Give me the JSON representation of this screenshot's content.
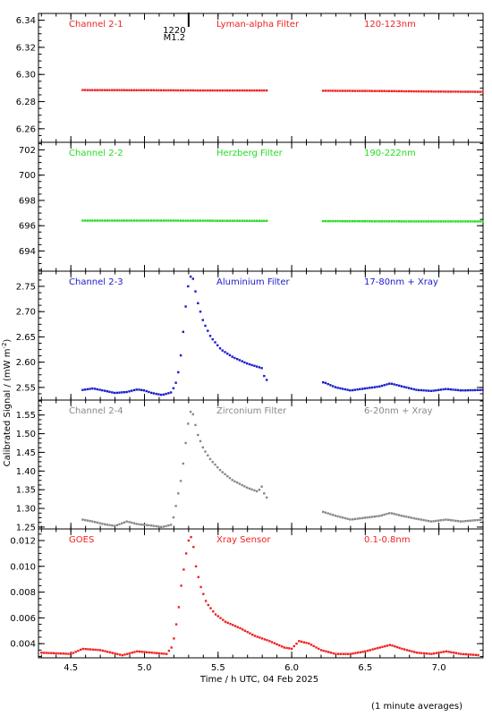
{
  "figure": {
    "ylabel": "Calibrated Signal / (mW m",
    "ylabel_sup": "-2",
    "ylabel_close": ")",
    "xlabel": "Time / h UTC, 04 Feb 2025",
    "footnote": "(1 minute averages)",
    "marker": {
      "top": "1220",
      "bottom": "M1.2",
      "time": 5.3
    }
  },
  "chart_data": [
    {
      "type": "scatter",
      "channel": "Channel 2-1",
      "filter": "Lyman-alpha Filter",
      "band": "120-123nm",
      "color": "#ee2222",
      "ylim": [
        6.25,
        6.345
      ],
      "yticks": [
        6.26,
        6.28,
        6.3,
        6.32,
        6.34
      ],
      "ydec": 2,
      "ytick_labels": true,
      "series": [
        {
          "pts": [
            [
              4.58,
              6.2885
            ],
            [
              5.0,
              6.2884
            ],
            [
              5.4,
              6.2882
            ],
            [
              5.82,
              6.2882
            ],
            [
              6.22,
              6.288
            ],
            [
              6.6,
              6.2878
            ],
            [
              7.0,
              6.2874
            ],
            [
              7.3,
              6.2872
            ]
          ]
        }
      ],
      "gaps": [
        [
          5.83,
          6.21
        ]
      ]
    },
    {
      "type": "scatter",
      "channel": "Channel 2-2",
      "filter": "Herzberg Filter",
      "band": "190-222nm",
      "color": "#22dd22",
      "ylim": [
        692.4,
        702.6
      ],
      "yticks": [
        694,
        696,
        698,
        700,
        702
      ],
      "ydec": 0,
      "ytick_labels": true,
      "series": [
        {
          "pts": [
            [
              4.58,
              696.4
            ],
            [
              5.2,
              696.4
            ],
            [
              5.82,
              696.38
            ],
            [
              6.22,
              696.36
            ],
            [
              6.8,
              696.34
            ],
            [
              7.3,
              696.34
            ]
          ]
        }
      ],
      "gaps": [
        [
          5.83,
          6.21
        ]
      ]
    },
    {
      "type": "scatter",
      "channel": "Channel 2-3",
      "filter": "Aluminium Filter",
      "band": "17-80nm + Xray",
      "color": "#1a1acc",
      "ylim": [
        2.525,
        2.78
      ],
      "yticks": [
        2.55,
        2.6,
        2.65,
        2.7,
        2.75
      ],
      "ydec": 2,
      "ytick_labels": true,
      "series": [
        {
          "pts": [
            [
              4.58,
              2.545
            ],
            [
              4.65,
              2.548
            ],
            [
              4.72,
              2.544
            ],
            [
              4.8,
              2.539
            ],
            [
              4.88,
              2.541
            ],
            [
              4.95,
              2.546
            ],
            [
              5.0,
              2.544
            ],
            [
              5.05,
              2.539
            ],
            [
              5.12,
              2.535
            ],
            [
              5.18,
              2.54
            ],
            [
              5.21,
              2.555
            ],
            [
              5.23,
              2.58
            ],
            [
              5.25,
              2.62
            ],
            [
              5.27,
              2.68
            ],
            [
              5.29,
              2.74
            ],
            [
              5.31,
              2.77
            ],
            [
              5.33,
              2.765
            ],
            [
              5.36,
              2.72
            ],
            [
              5.4,
              2.68
            ],
            [
              5.45,
              2.65
            ],
            [
              5.52,
              2.625
            ],
            [
              5.6,
              2.61
            ],
            [
              5.7,
              2.597
            ],
            [
              5.8,
              2.588
            ],
            [
              5.82,
              2.565
            ],
            [
              6.22,
              2.56
            ],
            [
              6.3,
              2.55
            ],
            [
              6.4,
              2.544
            ],
            [
              6.5,
              2.548
            ],
            [
              6.6,
              2.552
            ],
            [
              6.67,
              2.558
            ],
            [
              6.75,
              2.552
            ],
            [
              6.85,
              2.545
            ],
            [
              6.95,
              2.543
            ],
            [
              7.05,
              2.547
            ],
            [
              7.15,
              2.544
            ],
            [
              7.3,
              2.545
            ]
          ]
        }
      ],
      "gaps": [
        [
          5.83,
          6.21
        ]
      ]
    },
    {
      "type": "scatter",
      "channel": "Channel 2-4",
      "filter": "Zirconium Filter",
      "band": "6-20nm + Xray",
      "color": "#888888",
      "ylim": [
        1.245,
        1.59
      ],
      "yticks": [
        1.25,
        1.3,
        1.35,
        1.4,
        1.45,
        1.5,
        1.55
      ],
      "ydec": 2,
      "ytick_labels": true,
      "series": [
        {
          "pts": [
            [
              4.58,
              1.27
            ],
            [
              4.65,
              1.265
            ],
            [
              4.72,
              1.258
            ],
            [
              4.8,
              1.253
            ],
            [
              4.88,
              1.265
            ],
            [
              4.95,
              1.258
            ],
            [
              5.05,
              1.254
            ],
            [
              5.12,
              1.25
            ],
            [
              5.18,
              1.256
            ],
            [
              5.2,
              1.28
            ],
            [
              5.22,
              1.32
            ],
            [
              5.25,
              1.38
            ],
            [
              5.27,
              1.44
            ],
            [
              5.29,
              1.51
            ],
            [
              5.31,
              1.56
            ],
            [
              5.33,
              1.552
            ],
            [
              5.36,
              1.5
            ],
            [
              5.4,
              1.46
            ],
            [
              5.45,
              1.43
            ],
            [
              5.52,
              1.4
            ],
            [
              5.6,
              1.375
            ],
            [
              5.7,
              1.355
            ],
            [
              5.77,
              1.345
            ],
            [
              5.8,
              1.36
            ],
            [
              5.82,
              1.33
            ],
            [
              6.22,
              1.29
            ],
            [
              6.3,
              1.28
            ],
            [
              6.4,
              1.27
            ],
            [
              6.5,
              1.275
            ],
            [
              6.6,
              1.28
            ],
            [
              6.67,
              1.288
            ],
            [
              6.75,
              1.28
            ],
            [
              6.85,
              1.272
            ],
            [
              6.95,
              1.265
            ],
            [
              7.05,
              1.27
            ],
            [
              7.15,
              1.265
            ],
            [
              7.3,
              1.27
            ]
          ]
        }
      ],
      "gaps": [
        [
          5.83,
          6.21
        ]
      ]
    },
    {
      "type": "scatter",
      "channel": "GOES",
      "filter": "Xray Sensor",
      "band": "0.1-0.8nm",
      "color": "#ee2222",
      "ylim": [
        0.0029,
        0.0129
      ],
      "yticks": [
        0.004,
        0.006,
        0.008,
        0.01,
        0.012
      ],
      "ydec": 3,
      "ytick_labels": true,
      "series": [
        {
          "pts": [
            [
              4.3,
              0.0033
            ],
            [
              4.5,
              0.0032
            ],
            [
              4.58,
              0.0036
            ],
            [
              4.7,
              0.0035
            ],
            [
              4.85,
              0.0031
            ],
            [
              4.95,
              0.0034
            ],
            [
              5.05,
              0.0033
            ],
            [
              5.15,
              0.0032
            ],
            [
              5.19,
              0.0038
            ],
            [
              5.21,
              0.005
            ],
            [
              5.23,
              0.0065
            ],
            [
              5.25,
              0.0085
            ],
            [
              5.27,
              0.01
            ],
            [
              5.29,
              0.0115
            ],
            [
              5.31,
              0.0125
            ],
            [
              5.33,
              0.0118
            ],
            [
              5.35,
              0.01
            ],
            [
              5.38,
              0.0085
            ],
            [
              5.42,
              0.0072
            ],
            [
              5.48,
              0.0063
            ],
            [
              5.55,
              0.0057
            ],
            [
              5.65,
              0.0052
            ],
            [
              5.75,
              0.0046
            ],
            [
              5.85,
              0.0042
            ],
            [
              5.95,
              0.0037
            ],
            [
              6.0,
              0.0036
            ],
            [
              6.05,
              0.0042
            ],
            [
              6.12,
              0.004
            ],
            [
              6.2,
              0.0035
            ],
            [
              6.3,
              0.0032
            ],
            [
              6.4,
              0.0032
            ],
            [
              6.5,
              0.0034
            ],
            [
              6.6,
              0.0037
            ],
            [
              6.67,
              0.0039
            ],
            [
              6.75,
              0.0036
            ],
            [
              6.85,
              0.0033
            ],
            [
              6.95,
              0.0032
            ],
            [
              7.05,
              0.0034
            ],
            [
              7.15,
              0.0032
            ],
            [
              7.28,
              0.0031
            ]
          ]
        }
      ],
      "gaps": []
    }
  ],
  "xaxis": {
    "xlim": [
      4.28,
      7.3
    ],
    "ticks": [
      4.5,
      5.0,
      5.5,
      6.0,
      6.5,
      7.0
    ],
    "tick_labels": [
      "4.5",
      "5.0",
      "5.5",
      "6.0",
      "6.5",
      "7.0"
    ]
  }
}
